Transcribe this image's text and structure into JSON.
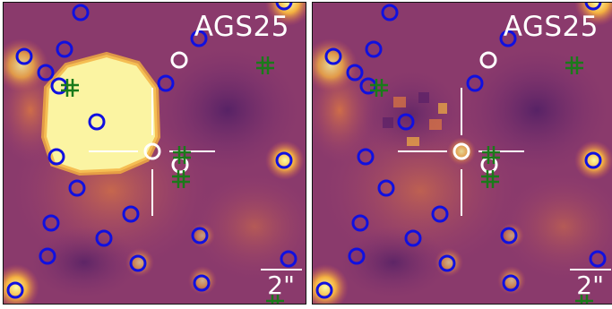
{
  "figure": {
    "panels": [
      {
        "id": "left",
        "title": "AGS25",
        "scale_label": "2\"",
        "variant": "with-source"
      },
      {
        "id": "right",
        "title": "AGS25",
        "scale_label": "2\"",
        "variant": "source-subtracted"
      }
    ]
  },
  "colors": {
    "background_colormap": [
      "#3a1a5a",
      "#6a2a78",
      "#9a3a70",
      "#c4525a",
      "#e07a40",
      "#f4b040",
      "#fbe880",
      "#fdfca0"
    ],
    "blue_marker": "#1010e0",
    "white_marker": "#ffffff",
    "green_marker": "#1a7a1a",
    "crosshair": "#ffffff",
    "text": "#ffffff"
  },
  "markers": {
    "blue_circle_count_left": 21,
    "blue_circle_count_right": 20,
    "white_circle_count": 3,
    "green_cross_count": 6
  }
}
